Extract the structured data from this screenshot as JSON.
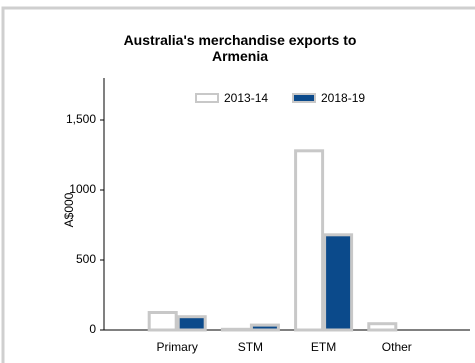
{
  "chart_data": {
    "type": "bar",
    "title": "Australia's merchandise exports to Armenia",
    "y_label": "A$000",
    "categories": [
      "Primary",
      "STM",
      "ETM",
      "Other"
    ],
    "series": [
      {
        "name": "2013-14",
        "color": "#ffffff",
        "values": [
          125,
          5,
          1280,
          45
        ]
      },
      {
        "name": "2018-19",
        "color": "#0b4a8b",
        "values": [
          95,
          35,
          680,
          0
        ]
      }
    ],
    "ylim": [
      0,
      1800
    ],
    "yticks": [
      0,
      500,
      1000,
      {
        "value": 1500,
        "label": "1,500"
      }
    ]
  }
}
